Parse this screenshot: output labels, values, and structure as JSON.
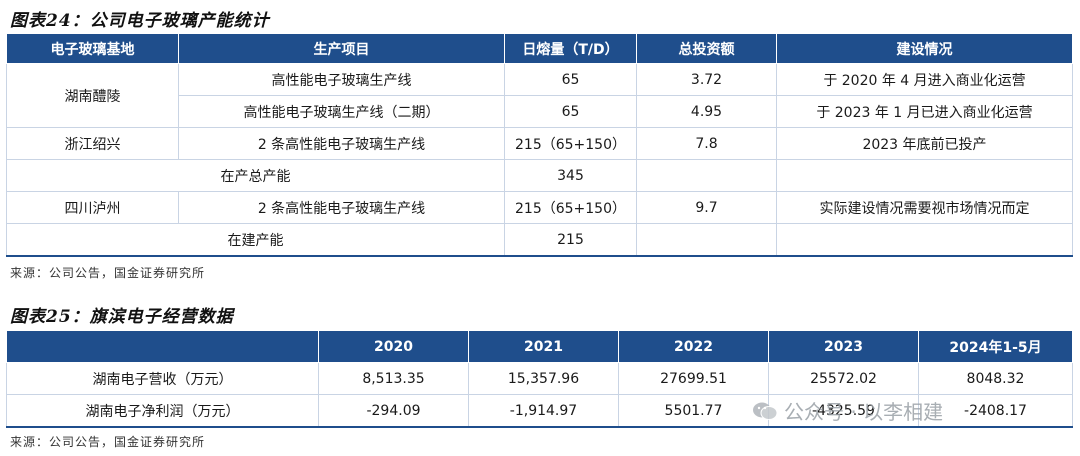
{
  "fig1": {
    "title": "图表24：公司电子玻璃产能统计",
    "headers": [
      "电子玻璃基地",
      "生产项目",
      "日熔量（T/D）",
      "总投资额",
      "建设情况"
    ],
    "rows": [
      {
        "base": "湖南醴陵",
        "project": "高性能电子玻璃生产线",
        "melt": "65",
        "invest": "3.72",
        "status": "于 2020 年 4 月进入商业化运营"
      },
      {
        "project": "高性能电子玻璃生产线（二期）",
        "melt": "65",
        "invest": "4.95",
        "status": "于 2023 年 1 月已进入商业化运营"
      },
      {
        "base": "浙江绍兴",
        "project": "2 条高性能电子玻璃生产线",
        "melt": "215（65+150）",
        "invest": "7.8",
        "status": "2023 年底前已投产"
      },
      {
        "label": "在产总产能",
        "melt": "345",
        "invest": "",
        "status": ""
      },
      {
        "base": "四川泸州",
        "project": "2 条高性能电子玻璃生产线",
        "melt": "215（65+150）",
        "invest": "9.7",
        "status": "实际建设情况需要视市场情况而定"
      },
      {
        "label": "在建产能",
        "melt": "215",
        "invest": "",
        "status": ""
      }
    ],
    "source": "来源：公司公告，国金证券研究所"
  },
  "fig2": {
    "title": "图表25：旗滨电子经营数据",
    "headers": [
      "",
      "2020",
      "2021",
      "2022",
      "2023",
      "2024年1-5月"
    ],
    "rows": [
      {
        "label": "湖南电子营收（万元）",
        "values": [
          "8,513.35",
          "15,357.96",
          "27699.51",
          "25572.02",
          "8048.32"
        ]
      },
      {
        "label": "湖南电子净利润（万元）",
        "values": [
          "-294.09",
          "-1,914.97",
          "5501.77",
          "-4325.59",
          "-2408.17"
        ]
      }
    ],
    "source": "来源：公司公告，国金证券研究所"
  },
  "watermark": "公众号 · 以李相建"
}
